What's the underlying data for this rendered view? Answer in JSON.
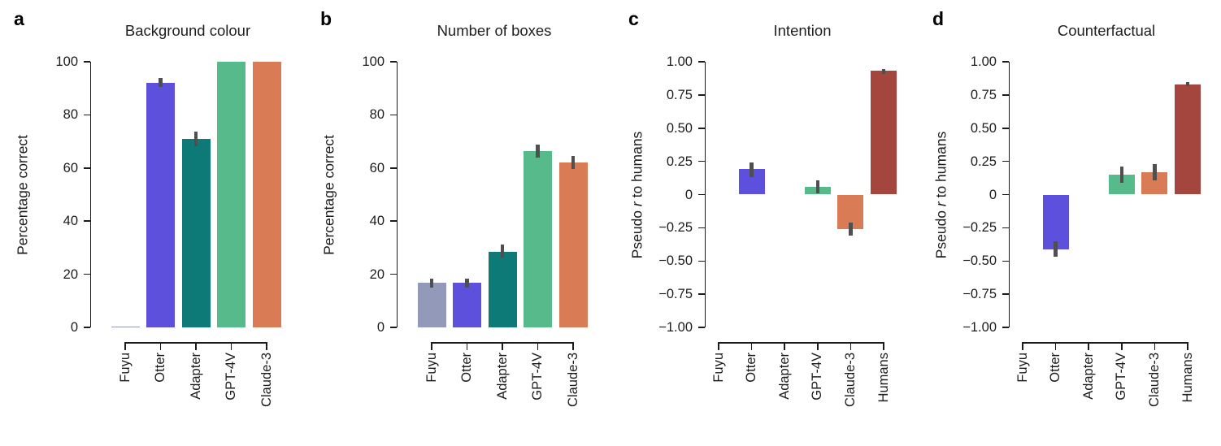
{
  "figure": {
    "background": "#ffffff",
    "axis_color": "#1c1c1c",
    "text_color": "#1c1c1c",
    "error_bar_color": "#4f4f4f",
    "palette": {
      "fuyu_gray": "#9399b8",
      "otter_purple": "#5c50dd",
      "adapter_teal": "#0e7a78",
      "gpt4v_green": "#56ba8b",
      "claude3_orange": "#d97b55",
      "humans_maroon": "#a4453e"
    }
  },
  "chart_data": [
    {
      "letter": "a",
      "type": "bar",
      "title": "Background colour",
      "ylabel": "Percentage correct",
      "xlabel": "",
      "ylim": [
        0,
        100
      ],
      "grid": false,
      "legend": null,
      "yticks": [
        100,
        80,
        60,
        40,
        20,
        0
      ],
      "ytick_labels": [
        "100",
        "80",
        "60",
        "40",
        "20",
        "0"
      ],
      "categories": [
        "Fuyu",
        "Otter",
        "Adapter",
        "GPT-4V",
        "Claude-3"
      ],
      "values": [
        0.4,
        92,
        71,
        100,
        100
      ],
      "errors": [
        null,
        [
          90.4,
          93.9
        ],
        [
          68.2,
          73.6
        ],
        null,
        null
      ],
      "colors": [
        "#9399b8",
        "#5c50dd",
        "#0e7a78",
        "#56ba8b",
        "#d97b55"
      ]
    },
    {
      "letter": "b",
      "type": "bar",
      "title": "Number of boxes",
      "ylabel": "Percentage correct",
      "xlabel": "",
      "ylim": [
        0,
        100
      ],
      "grid": false,
      "legend": null,
      "yticks": [
        100,
        80,
        60,
        40,
        20,
        0
      ],
      "ytick_labels": [
        "100",
        "80",
        "60",
        "40",
        "20",
        "0"
      ],
      "categories": [
        "Fuyu",
        "Otter",
        "Adapter",
        "GPT-4V",
        "Claude-3"
      ],
      "values": [
        16.8,
        16.8,
        28.5,
        66.3,
        62.2
      ],
      "errors": [
        [
          15.1,
          18.4
        ],
        [
          15.1,
          18.4
        ],
        [
          26.2,
          31.2
        ],
        [
          63.9,
          68.8
        ],
        [
          59.6,
          64.6
        ]
      ],
      "colors": [
        "#9399b8",
        "#5c50dd",
        "#0e7a78",
        "#56ba8b",
        "#d97b55"
      ]
    },
    {
      "letter": "c",
      "type": "bar",
      "title": "Intention",
      "ylabel_prefix": "Pseudo ",
      "ylabel_italic": "r",
      "ylabel_suffix": " to humans",
      "xlabel": "",
      "ylim": [
        -1,
        1
      ],
      "grid": false,
      "legend": null,
      "yticks": [
        1,
        0.75,
        0.5,
        0.25,
        0,
        -0.25,
        -0.5,
        -0.75,
        -1
      ],
      "ytick_labels": [
        "1.00",
        "0.75",
        "0.50",
        "0.25",
        "0",
        "−0.25",
        "−0.50",
        "−0.75",
        "−1.00"
      ],
      "categories": [
        "Fuyu",
        "Otter",
        "Adapter",
        "GPT-4V",
        "Claude-3",
        "Humans"
      ],
      "values": [
        null,
        0.19,
        null,
        0.06,
        -0.26,
        0.93
      ],
      "errors": [
        null,
        [
          0.13,
          0.24
        ],
        null,
        [
          0.01,
          0.11
        ],
        [
          -0.31,
          -0.21
        ],
        [
          0.91,
          0.945
        ]
      ],
      "colors": [
        "#9399b8",
        "#5c50dd",
        "#0e7a78",
        "#56ba8b",
        "#d97b55",
        "#a4453e"
      ]
    },
    {
      "letter": "d",
      "type": "bar",
      "title": "Counterfactual",
      "ylabel_prefix": "Pseudo ",
      "ylabel_italic": "r",
      "ylabel_suffix": " to humans",
      "xlabel": "",
      "ylim": [
        -1,
        1
      ],
      "grid": false,
      "legend": null,
      "yticks": [
        1,
        0.75,
        0.5,
        0.25,
        0,
        -0.25,
        -0.5,
        -0.75,
        -1
      ],
      "ytick_labels": [
        "1.00",
        "0.75",
        "0.50",
        "0.25",
        "0",
        "−0.25",
        "−0.50",
        "−0.75",
        "−1.00"
      ],
      "categories": [
        "Fuyu",
        "Otter",
        "Adapter",
        "GPT-4V",
        "Claude-3",
        "Humans"
      ],
      "values": [
        null,
        -0.41,
        null,
        0.15,
        0.17,
        0.83
      ],
      "errors": [
        null,
        [
          -0.47,
          -0.35
        ],
        null,
        [
          0.09,
          0.21
        ],
        [
          0.11,
          0.23
        ],
        [
          0.815,
          0.845
        ]
      ],
      "colors": [
        "#9399b8",
        "#5c50dd",
        "#0e7a78",
        "#56ba8b",
        "#d97b55",
        "#a4453e"
      ]
    }
  ]
}
